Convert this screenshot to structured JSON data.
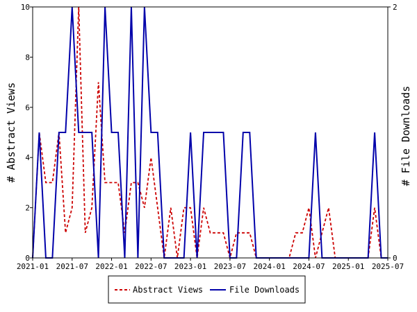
{
  "chart_data": {
    "type": "line",
    "x": [
      "2021-01",
      "2021-02",
      "2021-03",
      "2021-04",
      "2021-05",
      "2021-06",
      "2021-07",
      "2021-08",
      "2021-09",
      "2021-10",
      "2021-11",
      "2021-12",
      "2022-01",
      "2022-02",
      "2022-03",
      "2022-04",
      "2022-05",
      "2022-06",
      "2022-07",
      "2022-08",
      "2022-09",
      "2022-10",
      "2022-11",
      "2022-12",
      "2023-01",
      "2023-02",
      "2023-03",
      "2023-04",
      "2023-05",
      "2023-06",
      "2023-07",
      "2023-08",
      "2023-09",
      "2023-10",
      "2023-11",
      "2023-12",
      "2024-01",
      "2024-02",
      "2024-03",
      "2024-04",
      "2024-05",
      "2024-06",
      "2024-07",
      "2024-08",
      "2024-09",
      "2024-10",
      "2024-11",
      "2024-12",
      "2025-01",
      "2025-02",
      "2025-03",
      "2025-04",
      "2025-05",
      "2025-06",
      "2025-07"
    ],
    "series": [
      {
        "name": "Abstract Views",
        "axis": "left",
        "color": "#cc0000",
        "values": [
          0,
          5,
          3,
          3,
          5,
          1,
          2,
          10,
          1,
          2,
          7,
          3,
          3,
          3,
          1,
          3,
          3,
          2,
          4,
          2,
          0,
          2,
          0,
          2,
          2,
          0,
          2,
          1,
          1,
          1,
          0,
          1,
          1,
          1,
          0,
          0,
          0,
          0,
          0,
          0,
          1,
          1,
          2,
          0,
          1,
          2,
          0,
          0,
          0,
          0,
          0,
          0,
          2,
          0,
          0
        ]
      },
      {
        "name": "File Downloads",
        "axis": "right",
        "color": "#0000aa",
        "values": [
          0,
          1,
          0,
          0,
          1,
          1,
          2,
          1,
          1,
          1,
          0,
          2,
          1,
          1,
          0,
          2,
          0,
          2,
          1,
          1,
          0,
          0,
          0,
          0,
          1,
          0,
          1,
          1,
          1,
          1,
          0,
          0,
          1,
          1,
          0,
          0,
          0,
          0,
          0,
          0,
          0,
          0,
          0,
          1,
          0,
          0,
          0,
          0,
          0,
          0,
          0,
          0,
          1,
          0,
          0
        ]
      }
    ],
    "x_tick_labels": [
      "2021-01",
      "2021-07",
      "2022-01",
      "2022-07",
      "2023-01",
      "2023-07",
      "2024-01",
      "2024-07",
      "2025-01",
      "2025-07"
    ],
    "y_left": {
      "label": "# Abstract Views",
      "ylim": [
        0,
        10
      ],
      "ticks": [
        "0",
        "2",
        "4",
        "6",
        "8",
        "10"
      ]
    },
    "y_right": {
      "label": "# File Downloads",
      "ylim": [
        0,
        2
      ],
      "ticks": [
        "0",
        "2"
      ]
    },
    "legend": {
      "placement": "bottom-center"
    },
    "grid": false
  }
}
